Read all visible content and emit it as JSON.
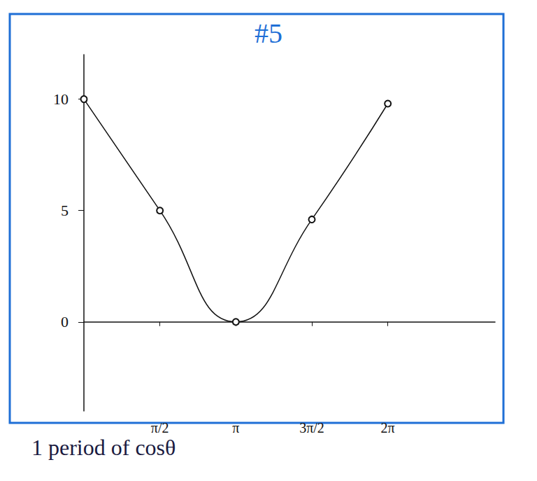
{
  "chart_data": {
    "type": "line",
    "title": "#5",
    "subtitle": "1 period of cosθ",
    "x": [
      0,
      1.5708,
      3.1416,
      4.7124,
      6.2832
    ],
    "values": [
      10,
      5,
      0,
      4.6,
      9.8
    ],
    "color": "#111111",
    "marker": "circle",
    "xlim": [
      0,
      8.5
    ],
    "xticks": [
      {
        "value": 1.5708,
        "label": "π/2"
      },
      {
        "value": 3.1416,
        "label": "π"
      },
      {
        "value": 4.7124,
        "label": "3π/2"
      },
      {
        "value": 6.2832,
        "label": "2π"
      }
    ],
    "ylim": [
      -4,
      12
    ],
    "yticks": [
      0,
      5,
      10
    ],
    "grid": false
  }
}
